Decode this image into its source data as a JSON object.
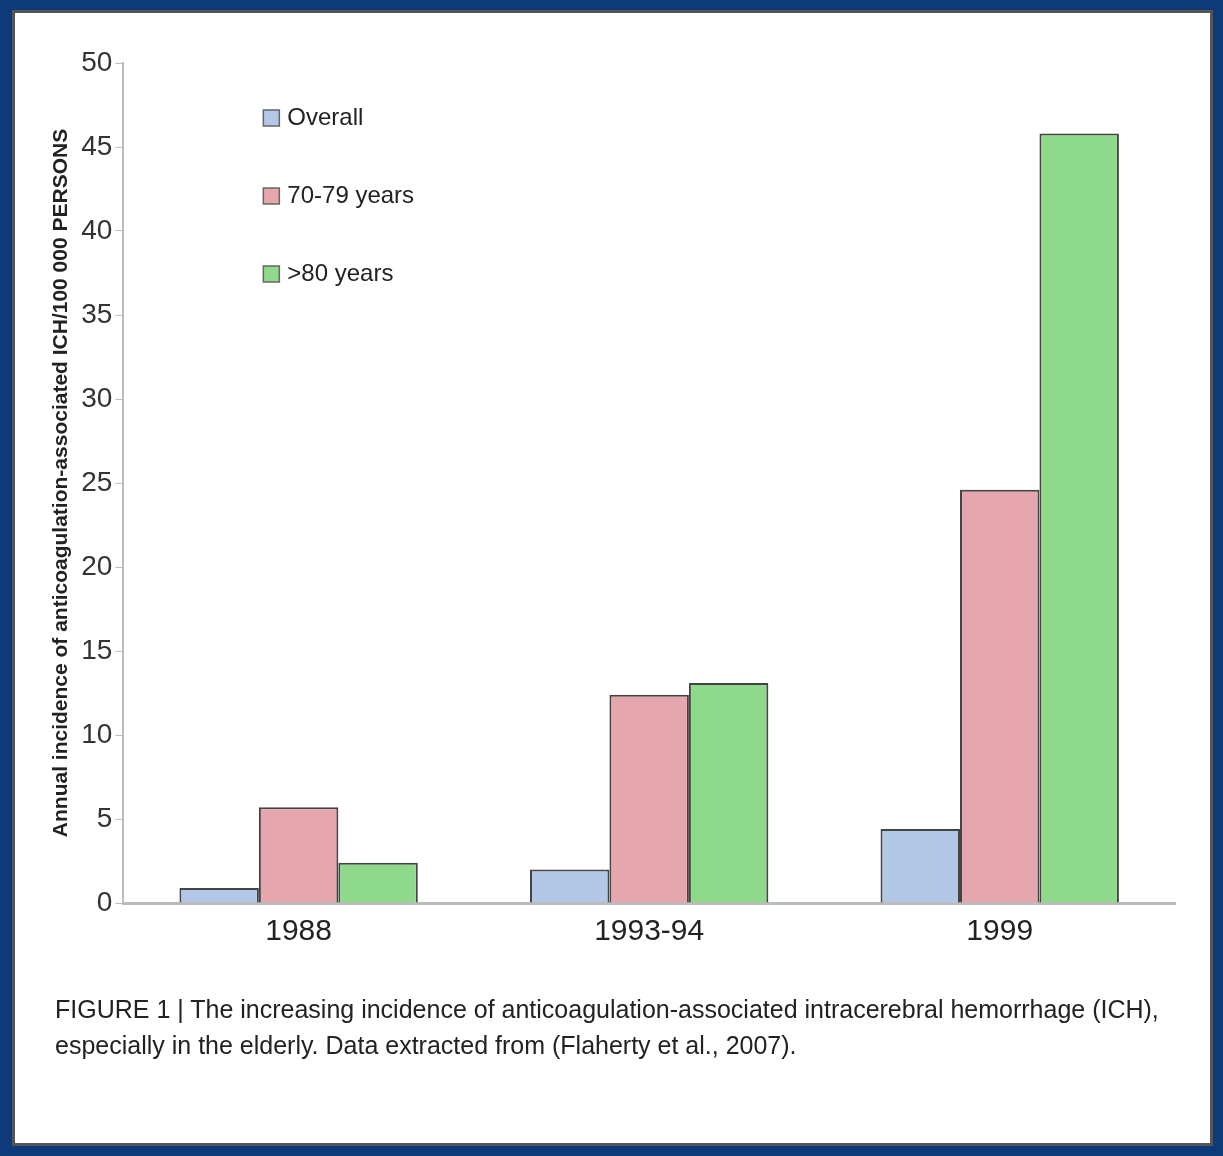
{
  "chart_data": {
    "type": "bar",
    "ylabel": "Annual incidence of anticoagulation-associated ICH/100 000 PERSONS",
    "categories": [
      "1988",
      "1993-94",
      "1999"
    ],
    "series": [
      {
        "name": "Overall",
        "color": "#b3c7e6",
        "values": [
          0.9,
          2.0,
          4.4
        ]
      },
      {
        "name": "70-79 years",
        "color": "#e6a6ad",
        "values": [
          5.7,
          12.4,
          24.6
        ]
      },
      {
        "name": ">80 years",
        "color": "#8fd98a",
        "values": [
          2.4,
          13.1,
          45.8
        ]
      }
    ],
    "ylim": [
      0,
      50
    ],
    "yticks": [
      0,
      5,
      10,
      15,
      20,
      25,
      30,
      35,
      40,
      45,
      50
    ],
    "grid": false,
    "legend": "top left",
    "annotations": [
      "FIGURE 1 | The increasing incidence of anticoagulation-associated intracerebral hemorrhage (ICH), especially in the elderly. Data extracted from (Flaherty et al., 2007)."
    ]
  }
}
